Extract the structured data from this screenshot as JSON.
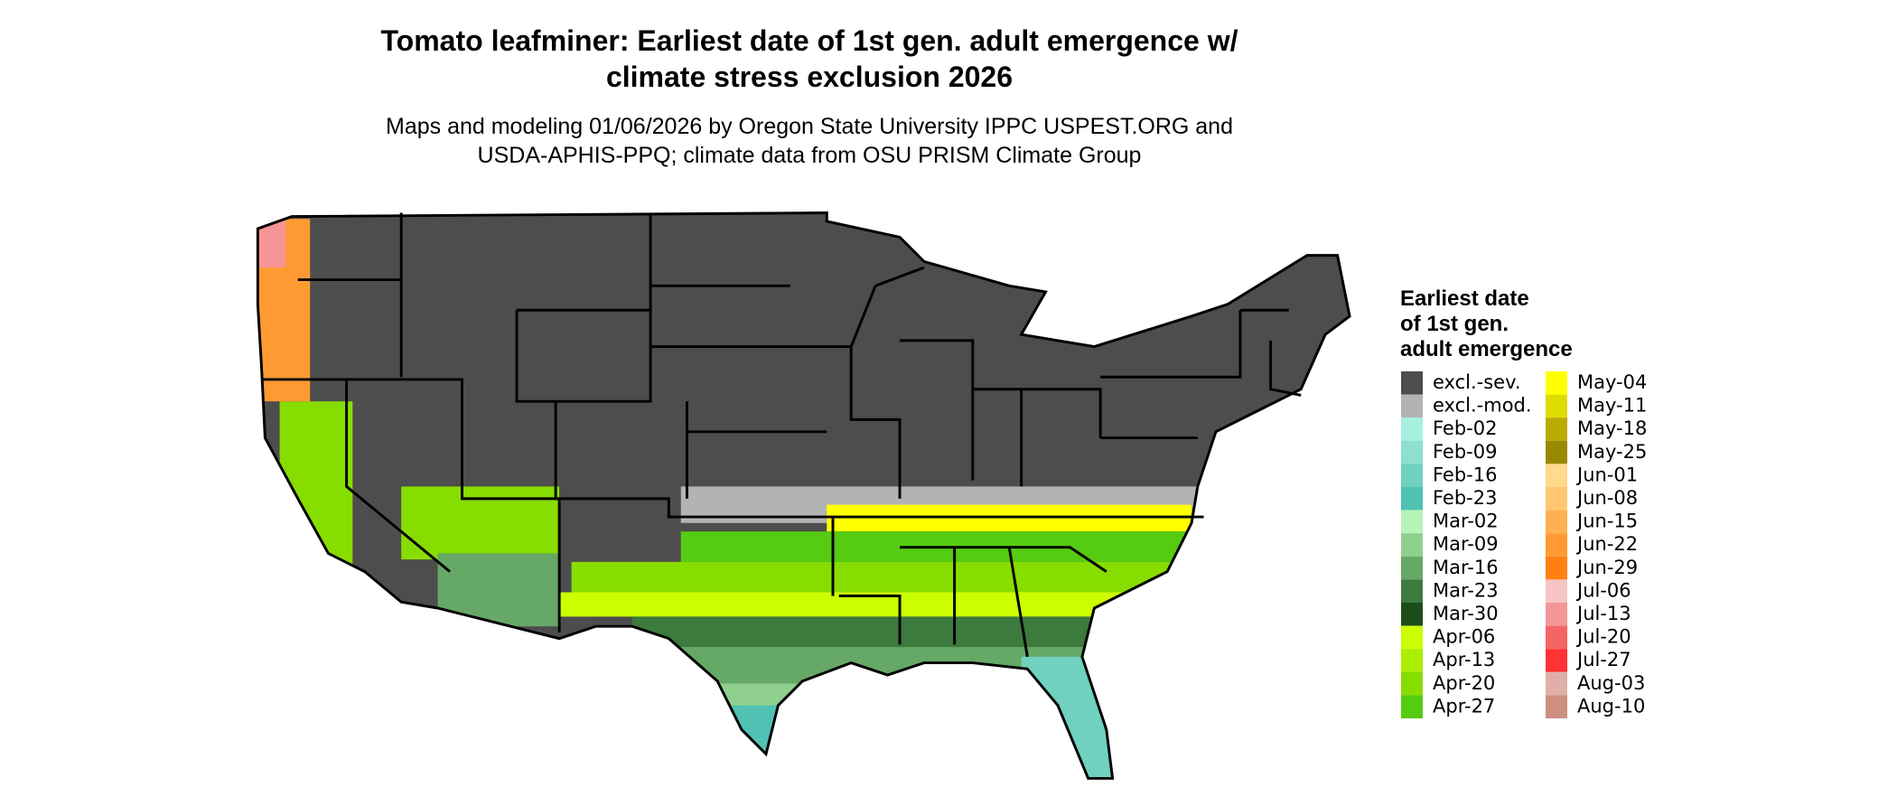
{
  "title": [
    "Tomato leafminer: Earliest date of 1st gen. adult emergence w/",
    "climate stress exclusion 2026"
  ],
  "subtitle": [
    "Maps and modeling 01/06/2026 by Oregon State University IPPC USPEST.ORG and",
    "USDA-APHIS-PPQ; climate data from OSU PRISM Climate Group"
  ],
  "legend": {
    "title": [
      "Earliest date",
      "of 1st gen.",
      "adult emergence"
    ],
    "items": [
      {
        "label": "excl.-sev.",
        "color": "#4d4d4d"
      },
      {
        "label": "excl.-mod.",
        "color": "#b3b3b3"
      },
      {
        "label": "Feb-02",
        "color": "#a6f0e0"
      },
      {
        "label": "Feb-09",
        "color": "#8ddfcf"
      },
      {
        "label": "Feb-16",
        "color": "#70d1c1"
      },
      {
        "label": "Feb-23",
        "color": "#4fc2b3"
      },
      {
        "label": "Mar-02",
        "color": "#b5f5b5"
      },
      {
        "label": "Mar-09",
        "color": "#8fd08f"
      },
      {
        "label": "Mar-16",
        "color": "#66a866"
      },
      {
        "label": "Mar-23",
        "color": "#3d7a3d"
      },
      {
        "label": "Mar-30",
        "color": "#1a4d1a"
      },
      {
        "label": "Apr-06",
        "color": "#ccff00"
      },
      {
        "label": "Apr-13",
        "color": "#aaee00"
      },
      {
        "label": "Apr-20",
        "color": "#88dd00"
      },
      {
        "label": "Apr-27",
        "color": "#55cc11"
      },
      {
        "label": "May-04",
        "color": "#ffff00"
      },
      {
        "label": "May-11",
        "color": "#dddd00"
      },
      {
        "label": "May-18",
        "color": "#bbaa00"
      },
      {
        "label": "May-25",
        "color": "#998800"
      },
      {
        "label": "Jun-01",
        "color": "#ffd98c"
      },
      {
        "label": "Jun-08",
        "color": "#ffc870"
      },
      {
        "label": "Jun-15",
        "color": "#ffb050"
      },
      {
        "label": "Jun-22",
        "color": "#ff9a33"
      },
      {
        "label": "Jun-29",
        "color": "#ff8011"
      },
      {
        "label": "Jul-06",
        "color": "#f5c5c5"
      },
      {
        "label": "Jul-13",
        "color": "#f59595"
      },
      {
        "label": "Jul-20",
        "color": "#f56565"
      },
      {
        "label": "Jul-27",
        "color": "#ff3333"
      },
      {
        "label": "Aug-03",
        "color": "#e0b0a8"
      },
      {
        "label": "Aug-10",
        "color": "#cc8f80"
      }
    ]
  }
}
